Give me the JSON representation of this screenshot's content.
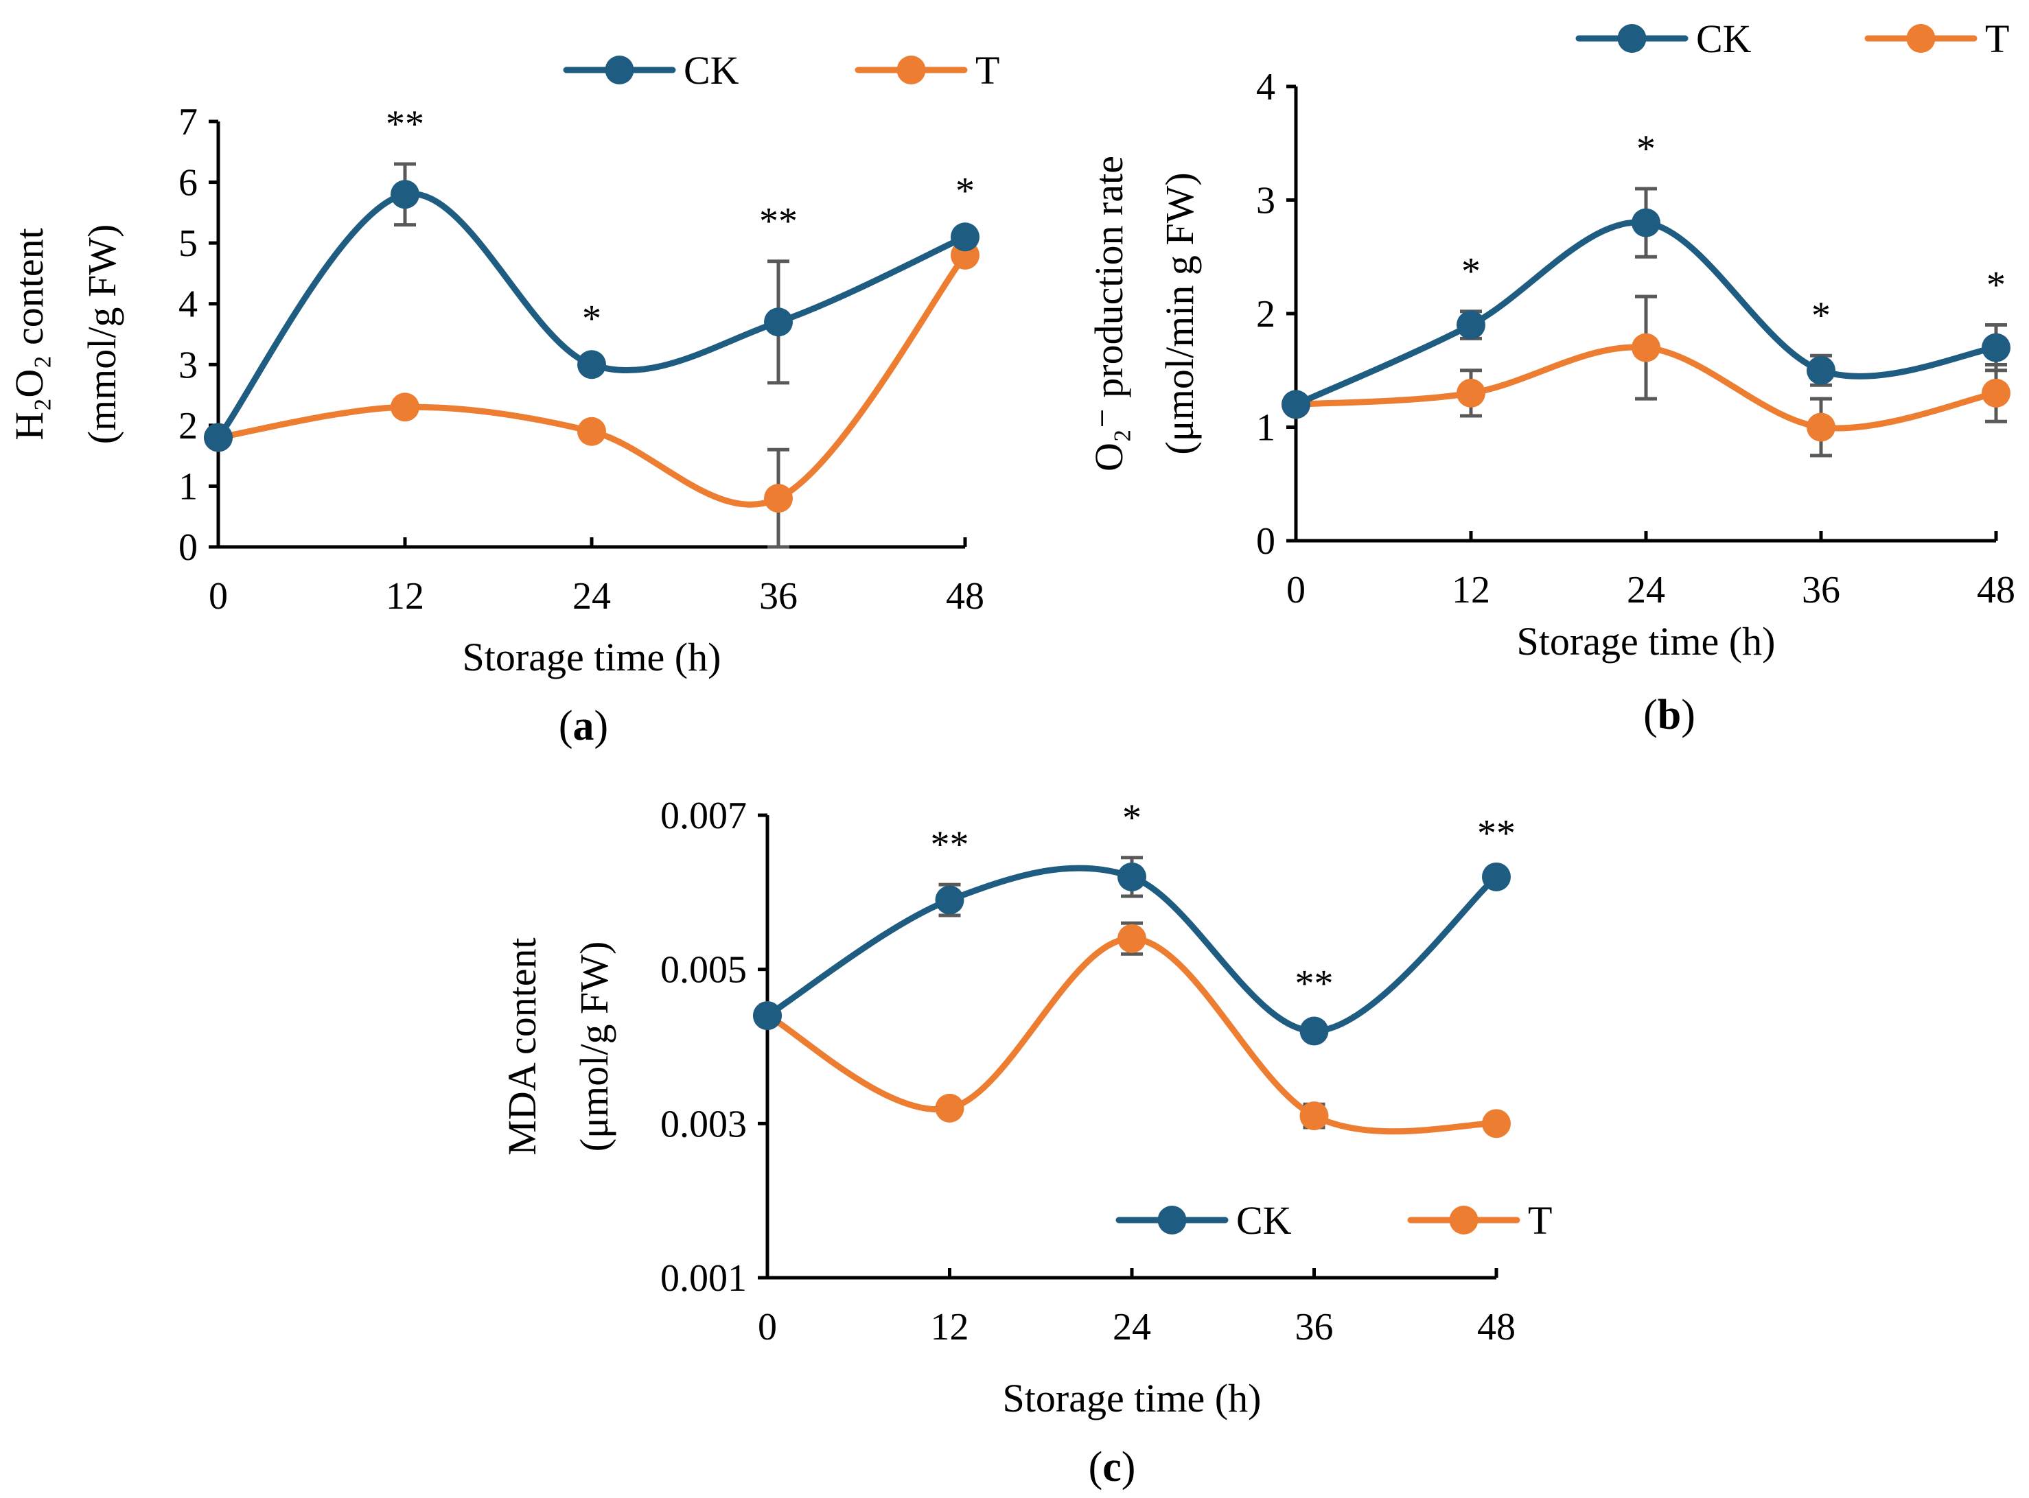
{
  "chart_data": [
    {
      "id": "a",
      "type": "line",
      "panel_label": "a",
      "title": "",
      "xlabel": "Storage time (h)",
      "ylabel_line1": "H₂O₂ content",
      "ylabel_line2": "(mmol/g FW)",
      "x": [
        0,
        12,
        24,
        36,
        48
      ],
      "x_tick_labels": [
        "0",
        "12",
        "24",
        "36",
        "48"
      ],
      "ylim": [
        0,
        7
      ],
      "y_ticks": [
        0,
        1,
        2,
        3,
        4,
        5,
        6,
        7
      ],
      "y_tick_labels": [
        "0",
        "1",
        "2",
        "3",
        "4",
        "5",
        "6",
        "7"
      ],
      "legend_position": "top",
      "series": [
        {
          "name": "CK",
          "color": "#1F5C82",
          "values": [
            1.8,
            5.8,
            3.0,
            3.7,
            5.1
          ],
          "errors": [
            0.1,
            0.5,
            0.1,
            1.0,
            0.1
          ]
        },
        {
          "name": "T",
          "color": "#ED7D31",
          "values": [
            1.8,
            2.3,
            1.9,
            0.8,
            4.8
          ],
          "errors": [
            0.1,
            0.1,
            0.1,
            0.8,
            0.1
          ]
        }
      ],
      "significance": [
        "",
        "**",
        "*",
        "**",
        "*"
      ]
    },
    {
      "id": "b",
      "type": "line",
      "panel_label": "b",
      "title": "",
      "xlabel": "Storage time (h)",
      "ylabel_line1": "O₂⁻ production rate",
      "ylabel_line2": "(μmol/min g FW)",
      "x": [
        0,
        12,
        24,
        36,
        48
      ],
      "x_tick_labels": [
        "0",
        "12",
        "24",
        "36",
        "48"
      ],
      "ylim": [
        0,
        4
      ],
      "y_ticks": [
        0,
        1,
        2,
        3,
        4
      ],
      "y_tick_labels": [
        "0",
        "1",
        "2",
        "3",
        "4"
      ],
      "legend_position": "top-right",
      "series": [
        {
          "name": "CK",
          "color": "#1F5C82",
          "values": [
            1.2,
            1.9,
            2.8,
            1.5,
            1.7
          ],
          "errors": [
            0.05,
            0.12,
            0.3,
            0.13,
            0.2
          ]
        },
        {
          "name": "T",
          "color": "#ED7D31",
          "values": [
            1.2,
            1.3,
            1.7,
            1.0,
            1.3
          ],
          "errors": [
            0.05,
            0.2,
            0.45,
            0.25,
            0.25
          ]
        }
      ],
      "significance": [
        "",
        "*",
        "*",
        "*",
        "*"
      ]
    },
    {
      "id": "c",
      "type": "line",
      "panel_label": "c",
      "title": "",
      "xlabel": "Storage time (h)",
      "ylabel_line1": "MDA content",
      "ylabel_line2": "(μmol/g FW)",
      "x": [
        0,
        12,
        24,
        36,
        48
      ],
      "x_tick_labels": [
        "0",
        "12",
        "24",
        "36",
        "48"
      ],
      "ylim": [
        0.001,
        0.007
      ],
      "y_ticks": [
        0.001,
        0.003,
        0.005,
        0.007
      ],
      "y_tick_labels": [
        "0.001",
        "0.003",
        "0.005",
        "0.007"
      ],
      "legend_position": "bottom-right",
      "series": [
        {
          "name": "CK",
          "color": "#1F5C82",
          "values": [
            0.0044,
            0.0059,
            0.0062,
            0.0042,
            0.0062
          ],
          "errors": [
            5e-05,
            0.0002,
            0.00025,
            0.0001,
            5e-05
          ]
        },
        {
          "name": "T",
          "color": "#ED7D31",
          "values": [
            0.0044,
            0.0032,
            0.0054,
            0.0031,
            0.003
          ],
          "errors": [
            5e-05,
            5e-05,
            0.0002,
            0.00015,
            5e-05
          ]
        }
      ],
      "significance": [
        "",
        "**",
        "*",
        "**",
        "**"
      ]
    }
  ]
}
